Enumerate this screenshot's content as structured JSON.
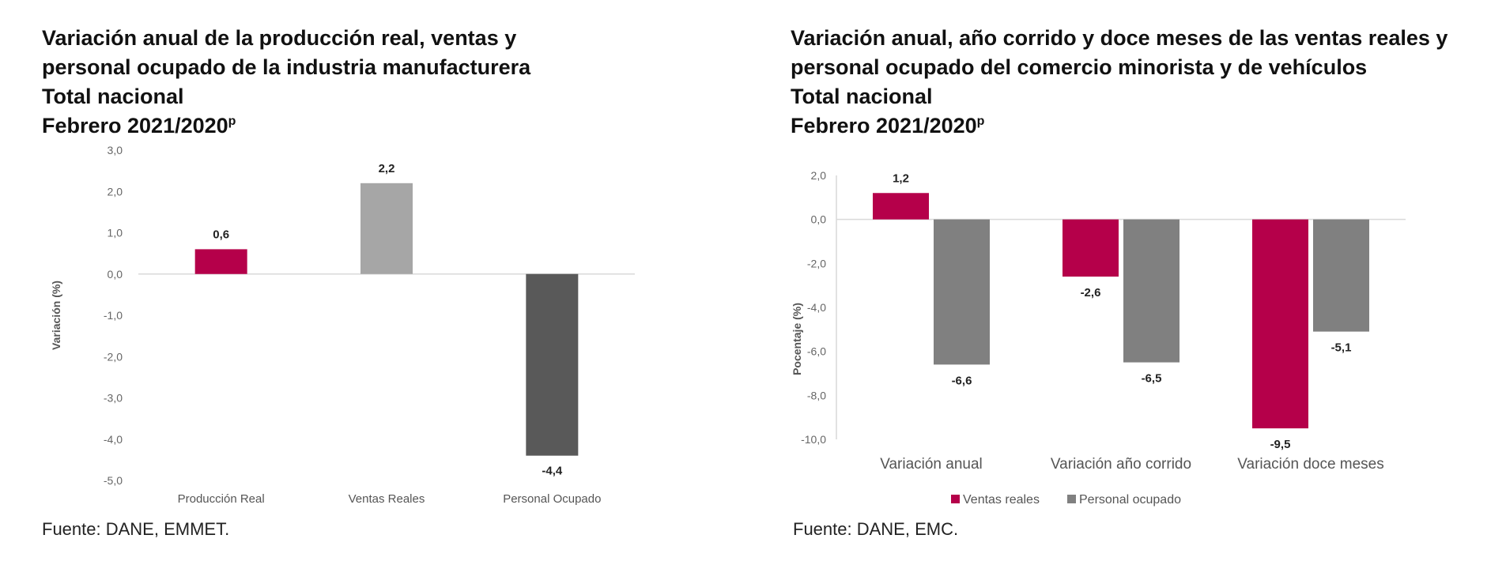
{
  "chart_data": [
    {
      "type": "bar",
      "title_lines": [
        "Variación anual de la producción real, ventas y",
        "personal ocupado de la industria manufacturera",
        "Total nacional",
        "Febrero 2021/2020"
      ],
      "title_superscript": "p",
      "ylabel": "Variación (%)",
      "ylim": [
        -5.0,
        3.0
      ],
      "yticks": [
        "3,0",
        "2,0",
        "1,0",
        "0,0",
        "-1,0",
        "-2,0",
        "-3,0",
        "-4,0",
        "-5,0"
      ],
      "categories": [
        "Producción Real",
        "Ventas Reales",
        "Personal Ocupado"
      ],
      "values": [
        0.6,
        2.2,
        -4.4
      ],
      "value_labels": [
        "0,6",
        "2,2",
        "-4,4"
      ],
      "colors": [
        "#b5004a",
        "#a6a6a6",
        "#595959"
      ],
      "legend": "none",
      "grid": false,
      "source": "Fuente: DANE, EMMET."
    },
    {
      "type": "bar",
      "title_lines": [
        "Variación anual, año corrido y doce meses de las ventas reales y",
        "personal ocupado del comercio minorista y de vehículos",
        "Total nacional",
        "Febrero 2021/2020"
      ],
      "title_superscript": "p",
      "ylabel": "Pocentaje (%)",
      "ylim": [
        -10.0,
        2.0
      ],
      "yticks": [
        "2,0",
        "0,0",
        "-2,0",
        "-4,0",
        "-6,0",
        "-8,0",
        "-10,0"
      ],
      "categories": [
        "Variación anual",
        "Variación año corrido",
        "Variación doce meses"
      ],
      "series": [
        {
          "name": "Ventas reales",
          "values": [
            1.2,
            -2.6,
            -9.5
          ],
          "labels": [
            "1,2",
            "-2,6",
            "-9,5"
          ],
          "color": "#b5004a"
        },
        {
          "name": "Personal ocupado",
          "values": [
            -6.6,
            -6.5,
            -5.1
          ],
          "labels": [
            "-6,6",
            "-6,5",
            "-5,1"
          ],
          "color": "#808080"
        }
      ],
      "legend": "bottom",
      "grid": false,
      "source": "Fuente: DANE, EMC."
    }
  ]
}
